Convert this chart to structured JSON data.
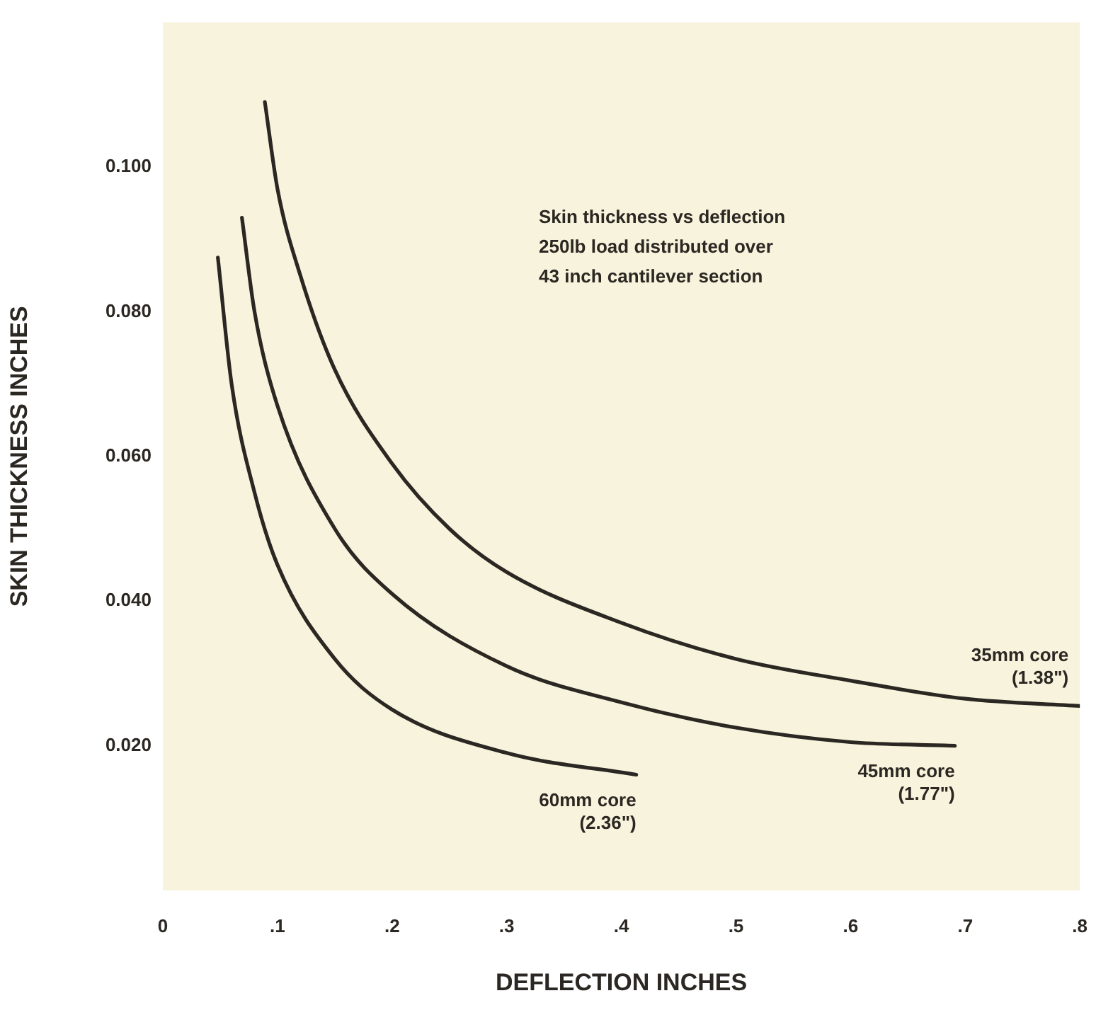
{
  "chart_data": {
    "type": "line",
    "xlabel": "DEFLECTION INCHES",
    "ylabel": "SKIN THICKNESS INCHES",
    "annotations": [
      "Skin thickness vs deflection\n250lb load distributed over\n43 inch cantilever section"
    ],
    "series": [
      {
        "name": "35mm core (1.38\")",
        "color": "#2b2722",
        "x": [
          0.089,
          0.1,
          0.12,
          0.15,
          0.2,
          0.25,
          0.3,
          0.4,
          0.5,
          0.6,
          0.7,
          0.8
        ],
        "values": [
          0.109,
          0.097,
          0.085,
          0.072,
          0.059,
          0.05,
          0.044,
          0.037,
          0.032,
          0.029,
          0.0265,
          0.0255
        ]
      },
      {
        "name": "45mm core (1.77\")",
        "color": "#2b2722",
        "x": [
          0.069,
          0.08,
          0.1,
          0.15,
          0.2,
          0.3,
          0.4,
          0.5,
          0.6,
          0.691
        ],
        "values": [
          0.093,
          0.08,
          0.067,
          0.05,
          0.041,
          0.031,
          0.026,
          0.0225,
          0.0205,
          0.02
        ]
      },
      {
        "name": "60mm core (2.36\")",
        "color": "#2b2722",
        "x": [
          0.048,
          0.06,
          0.08,
          0.1,
          0.15,
          0.2,
          0.3,
          0.413
        ],
        "values": [
          0.0875,
          0.07,
          0.055,
          0.045,
          0.032,
          0.025,
          0.019,
          0.016
        ]
      }
    ],
    "xlim": [
      0,
      0.8
    ],
    "ylim": [
      0,
      0.12
    ],
    "xticks": [
      0,
      {
        "value": 0.1,
        "label": ".1"
      },
      {
        "value": 0.2,
        "label": ".2"
      },
      {
        "value": 0.3,
        "label": ".3"
      },
      {
        "value": 0.4,
        "label": ".4"
      },
      {
        "value": 0.5,
        "label": ".5"
      },
      {
        "value": 0.6,
        "label": ".6"
      },
      {
        "value": 0.7,
        "label": ".7"
      },
      {
        "value": 0.8,
        "label": ".8"
      }
    ],
    "yticks": [
      {
        "value": 0.02,
        "label": "0.020"
      },
      {
        "value": 0.04,
        "label": "0.040"
      },
      {
        "value": 0.06,
        "label": "0.060"
      },
      {
        "value": 0.08,
        "label": "0.080"
      },
      {
        "value": 0.1,
        "label": "0.100"
      }
    ],
    "grid": false,
    "legend": false,
    "marker": "none",
    "line_style": "solid"
  }
}
